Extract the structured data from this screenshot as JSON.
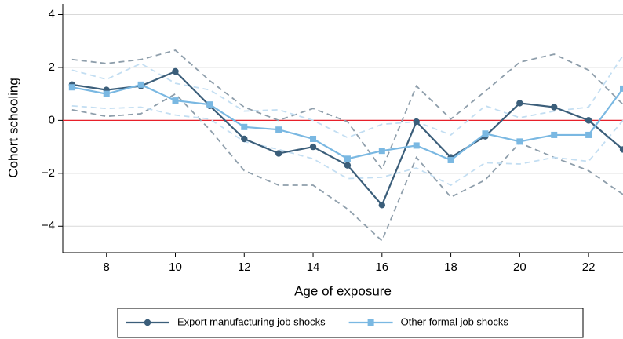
{
  "chart_data": {
    "type": "line",
    "x_label": "Age of exposure",
    "y_label": "Cohort schooling",
    "x": [
      7,
      8,
      9,
      10,
      11,
      12,
      13,
      14,
      15,
      16,
      17,
      18,
      19,
      20,
      21,
      22,
      23
    ],
    "series": [
      {
        "name": "Export manufacturing job shocks",
        "color": "#3b5e7a",
        "marker": "circle",
        "values": [
          1.35,
          1.15,
          1.3,
          1.85,
          0.55,
          -0.7,
          -1.25,
          -1.0,
          -1.7,
          -3.2,
          -0.05,
          -1.4,
          -0.6,
          0.65,
          0.5,
          0.0,
          -1.1
        ],
        "ci_color": "#8e9eab",
        "ci_upper": [
          2.3,
          2.15,
          2.3,
          2.65,
          1.5,
          0.5,
          0.0,
          0.45,
          -0.05,
          -1.85,
          1.3,
          0.05,
          1.1,
          2.2,
          2.5,
          1.9,
          0.6
        ],
        "ci_lower": [
          0.4,
          0.15,
          0.25,
          1.0,
          -0.35,
          -1.9,
          -2.45,
          -2.45,
          -3.35,
          -4.55,
          -1.4,
          -2.9,
          -2.25,
          -0.85,
          -1.4,
          -1.9,
          -2.8
        ]
      },
      {
        "name": "Other formal job shocks",
        "color": "#7ab8e2",
        "marker": "square",
        "values": [
          1.25,
          1.0,
          1.35,
          0.75,
          0.6,
          -0.25,
          -0.35,
          -0.7,
          -1.45,
          -1.15,
          -0.95,
          -1.5,
          -0.5,
          -0.8,
          -0.55,
          -0.55,
          1.2
        ],
        "ci_color": "#c3def2",
        "ci_upper": [
          1.9,
          1.55,
          2.15,
          1.4,
          1.15,
          0.35,
          0.4,
          0.0,
          -0.65,
          -0.15,
          -0.05,
          -0.55,
          0.55,
          0.1,
          0.35,
          0.5,
          2.45
        ],
        "ci_lower": [
          0.55,
          0.45,
          0.5,
          0.2,
          0.05,
          -0.8,
          -1.1,
          -1.45,
          -2.2,
          -2.15,
          -1.8,
          -2.45,
          -1.6,
          -1.65,
          -1.4,
          -1.55,
          0.0
        ]
      }
    ],
    "xlim": [
      6.73,
      23
    ],
    "xticks": [
      8,
      10,
      12,
      14,
      16,
      18,
      20,
      22
    ],
    "ylim": [
      -5,
      4.4
    ],
    "yticks": [
      {
        "value": -4,
        "label": "−4"
      },
      {
        "value": -2,
        "label": "−2"
      },
      0,
      2,
      4
    ],
    "grid": true,
    "reference_line": {
      "value": 0,
      "color": "#e8202a"
    },
    "legend": "bottom"
  }
}
